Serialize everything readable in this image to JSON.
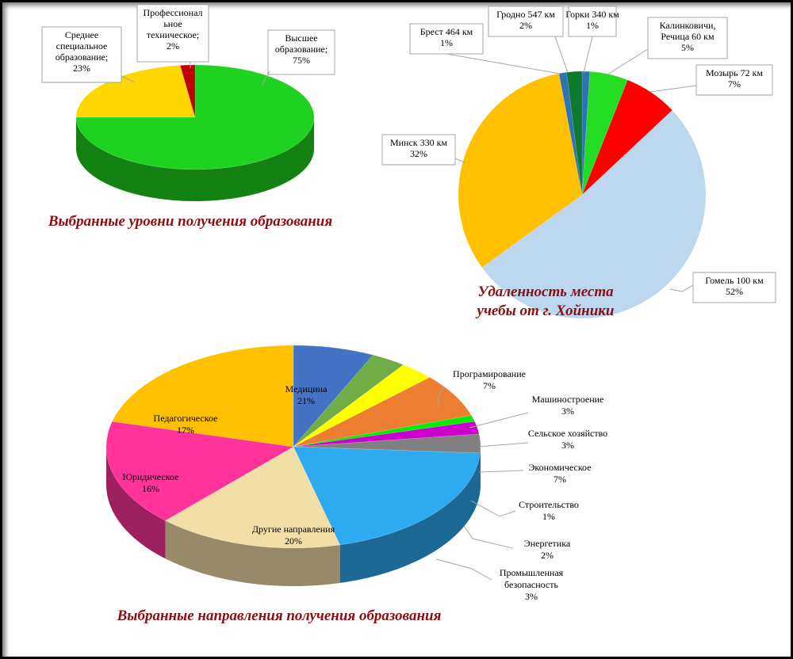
{
  "chart_data": [
    {
      "type": "pie",
      "title": "Выбранные уровни получения образования",
      "slices": [
        {
          "label": "Высшее образование",
          "value": 75,
          "value_text": "75%",
          "color": "#1fd21f"
        },
        {
          "label": "Среднее специальное образование",
          "value": 23,
          "value_text": "23%",
          "color": "#ffd700"
        },
        {
          "label": "Профессионально техническое",
          "value": 2,
          "value_text": "2%",
          "color": "#c00000"
        }
      ],
      "label_lines": [
        [
          "Высшее",
          "образование;",
          "75%"
        ],
        [
          "Среднее",
          "специальное",
          "образование;",
          "23%"
        ],
        [
          "Профессионал",
          "ьное",
          "техническое;",
          "2%"
        ]
      ]
    },
    {
      "type": "pie",
      "title": "Удаленность места учебы от г. Хойники",
      "title_lines": [
        "Удаленность места",
        "учебы от г. Хойники"
      ],
      "slices": [
        {
          "label": "Горки 340 км",
          "value": 1,
          "value_text": "1%",
          "color": "#2e74b5"
        },
        {
          "label": "Калинковичи, Речица 60 км",
          "value": 5,
          "value_text": "5%",
          "color": "#22dd22"
        },
        {
          "label": "Мозырь 72 км",
          "value": 7,
          "value_text": "7%",
          "color": "#ff0000"
        },
        {
          "label": "Гомель 100 км",
          "value": 52,
          "value_text": "52%",
          "color": "#bdd7ee"
        },
        {
          "label": "Минск 330 км",
          "value": 32,
          "value_text": "32%",
          "color": "#ffc000"
        },
        {
          "label": "Брест 464 км",
          "value": 1,
          "value_text": "1%",
          "color": "#2e74b5"
        },
        {
          "label": "Гродно 547 км",
          "value": 2,
          "value_text": "2%",
          "color": "#0e7a2f"
        }
      ],
      "label_lines": [
        [
          "Горки 340 км",
          "1%"
        ],
        [
          "Калинковичи,",
          "Речица  60 км",
          "5%"
        ],
        [
          "Мозырь 72 км",
          "7%"
        ],
        [
          "Гомель 100 км",
          "52%"
        ],
        [
          "Минск 330 км",
          "32%"
        ],
        [
          "Брест 464 км",
          "1%"
        ],
        [
          "Гродно 547 км",
          "2%"
        ]
      ]
    },
    {
      "type": "pie",
      "title": "Выбранные направления получения образования",
      "slices": [
        {
          "label": "Програмирование",
          "value": 7,
          "value_text": "7%",
          "color": "#4472c4"
        },
        {
          "label": "Машиностроение",
          "value": 3,
          "value_text": "3%",
          "color": "#70ad47"
        },
        {
          "label": "Сельское  хозяйство",
          "value": 3,
          "value_text": "3%",
          "color": "#ffff00"
        },
        {
          "label": "Экономическое",
          "value": 7,
          "value_text": "7%",
          "color": "#ed7d31"
        },
        {
          "label": "Строительство",
          "value": 1,
          "value_text": "1%",
          "color": "#00ee00"
        },
        {
          "label": "Энергетика",
          "value": 2,
          "value_text": "2%",
          "color": "#cc00cc"
        },
        {
          "label": "Промышленная безопасность",
          "value": 3,
          "value_text": "3%",
          "color": "#808080"
        },
        {
          "label": "Другие направления",
          "value": 20,
          "value_text": "20%",
          "color": "#2eaaf0"
        },
        {
          "label": "Юридическое",
          "value": 16,
          "value_text": "16%",
          "color": "#f2dfa8"
        },
        {
          "label": "Педагогическое",
          "value": 17,
          "value_text": "17%",
          "color": "#ff3399"
        },
        {
          "label": "Медицина",
          "value": 21,
          "value_text": "21%",
          "color": "#ffc000"
        }
      ],
      "label_lines": [
        [
          "Програмирование",
          "7%"
        ],
        [
          "Машиностроение",
          "3%"
        ],
        [
          "Сельское  хозяйство",
          "3%"
        ],
        [
          "Экономическое",
          "7%"
        ],
        [
          "Строительство",
          "1%"
        ],
        [
          "Энергетика",
          "2%"
        ],
        [
          "Промышленная",
          "безопасность",
          "3%"
        ],
        [
          "Другие направления",
          "20%"
        ],
        [
          "Юридическое",
          "16%"
        ],
        [
          "Педагогическое",
          "17%"
        ],
        [
          "Медицина",
          "21%"
        ]
      ]
    }
  ]
}
